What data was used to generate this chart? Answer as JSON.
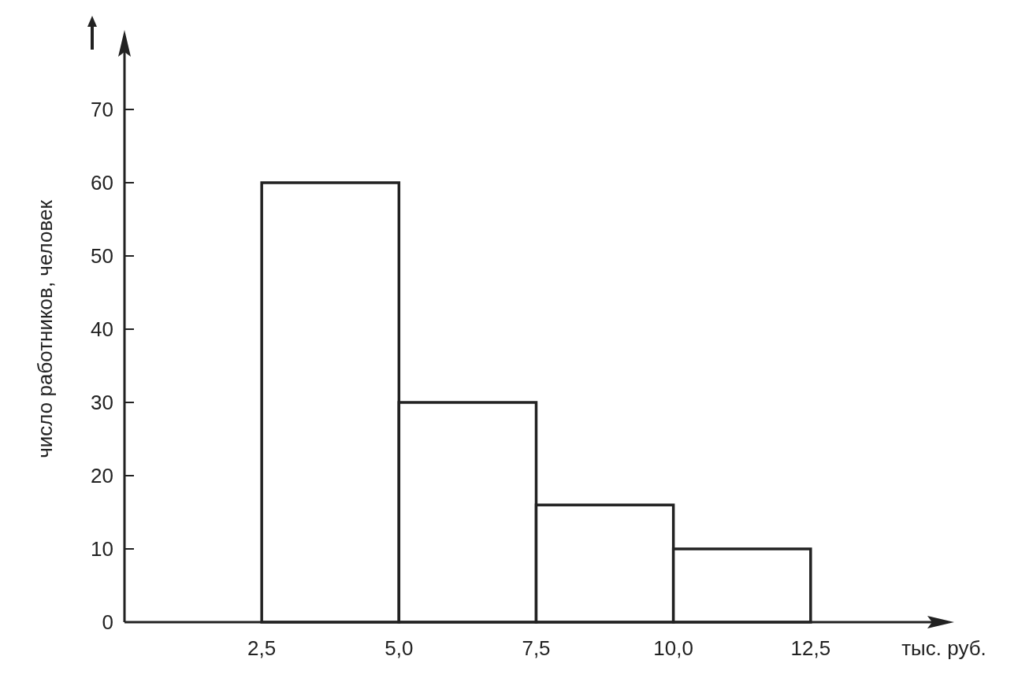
{
  "chart_data": {
    "type": "histogram",
    "xlabel": "тыс. руб.",
    "ylabel": "число работников, человек",
    "bins": [
      2.5,
      5,
      7.5,
      10,
      12.5
    ],
    "values": [
      60,
      30,
      16,
      10
    ],
    "color": "#ffffff",
    "xlim": [
      0,
      15
    ],
    "ylim": [
      0,
      80
    ],
    "xticks": [
      {
        "value": 2.5,
        "label": "2,5"
      },
      {
        "value": 5,
        "label": "5,0"
      },
      {
        "value": 7.5,
        "label": "7,5"
      },
      {
        "value": 10,
        "label": "10,0"
      },
      {
        "value": 12.5,
        "label": "12,5"
      }
    ],
    "yticks": [
      0,
      10,
      20,
      30,
      40,
      50,
      60,
      70
    ],
    "grid": false
  }
}
